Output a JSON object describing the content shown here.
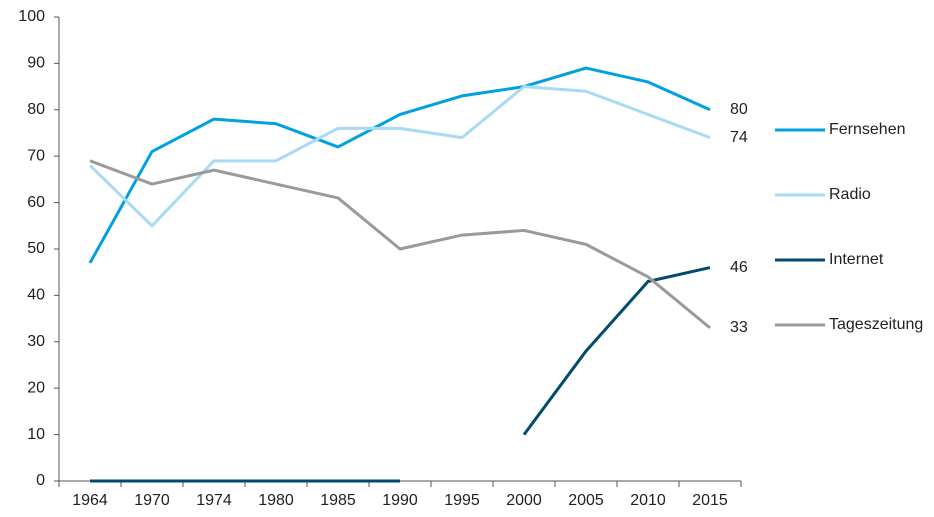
{
  "chart_data": {
    "type": "line",
    "categories": [
      "1964",
      "1970",
      "1974",
      "1980",
      "1985",
      "1990",
      "1995",
      "2000",
      "2005",
      "2010",
      "2015"
    ],
    "series": [
      {
        "name": "Fernsehen",
        "color": "#00a0e2",
        "values": [
          47,
          71,
          78,
          77,
          72,
          79,
          83,
          85,
          89,
          86,
          80
        ]
      },
      {
        "name": "Radio",
        "color": "#a9daf3",
        "values": [
          68,
          55,
          69,
          69,
          76,
          76,
          74,
          85,
          84,
          79,
          74
        ]
      },
      {
        "name": "Internet",
        "color": "#004b6e",
        "values": [
          0,
          0,
          0,
          0,
          0,
          0,
          null,
          10,
          28,
          43,
          46
        ]
      },
      {
        "name": "Tageszeitung",
        "color": "#9a9a9a",
        "values": [
          69,
          64,
          67,
          64,
          61,
          50,
          53,
          54,
          51,
          44,
          33
        ]
      }
    ],
    "ylim": [
      0,
      100
    ],
    "yticks": [
      0,
      10,
      20,
      30,
      40,
      50,
      60,
      70,
      80,
      90,
      100
    ],
    "grid": false,
    "legend": "right"
  }
}
